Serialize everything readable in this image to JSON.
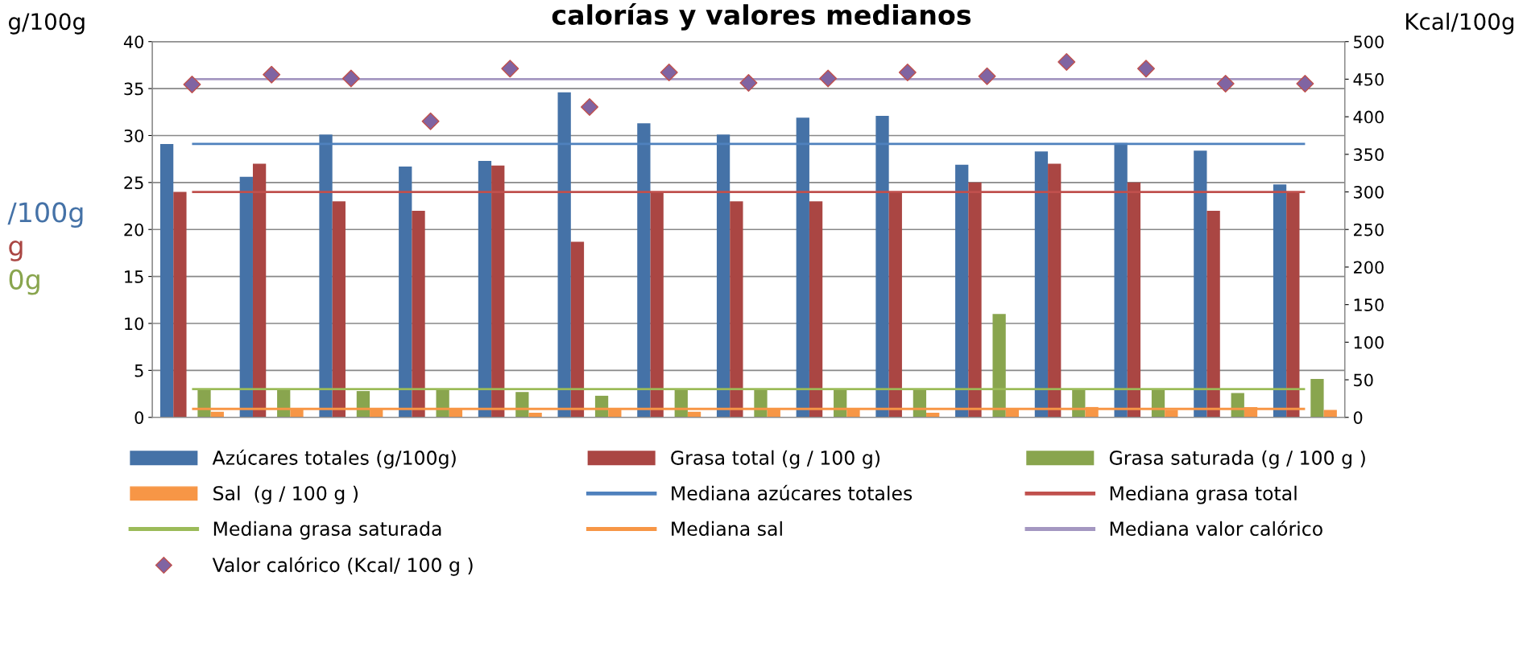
{
  "chart_data": {
    "type": "bar",
    "title": "calorías y valores medianos",
    "ylabel": "g/100g",
    "y2label": "Kcal/100g",
    "annotations": [
      "/100g",
      "g",
      "0g"
    ],
    "categories": [
      null,
      null,
      null,
      null,
      null,
      null,
      null,
      null,
      null,
      null,
      null,
      null,
      null,
      null,
      null
    ],
    "series": [
      {
        "name": "Azúcares totales (g/100g)",
        "color": "#4572a7",
        "values": [
          29.1,
          25.6,
          30.1,
          26.7,
          27.3,
          34.6,
          31.3,
          30.1,
          31.9,
          32.1,
          26.9,
          28.3,
          29.2,
          28.4,
          24.8
        ]
      },
      {
        "name": "Grasa total (g / 100 g)",
        "color": "#aa4643",
        "values": [
          24,
          27,
          23,
          22,
          26.8,
          18.7,
          24,
          23,
          23,
          24,
          25,
          27,
          25,
          22,
          24
        ]
      },
      {
        "name": "Grasa saturada (g / 100 g )",
        "color": "#89a54e",
        "values": [
          3,
          3,
          2.8,
          3,
          2.7,
          2.3,
          3,
          3,
          3,
          3,
          11,
          3,
          3,
          2.6,
          4.1
        ]
      },
      {
        "name": "Sal  (g / 100 g )",
        "color": "#f79646",
        "values": [
          0.6,
          0.9,
          1.0,
          0.9,
          0.5,
          0.9,
          0.6,
          0.9,
          0.9,
          0.5,
          0.9,
          1.1,
          0.8,
          1.1,
          0.8
        ]
      },
      {
        "name": "Mediana azúcares totales",
        "type": "line",
        "color": "#4f81bd",
        "values": [
          29.1,
          29.1,
          29.1,
          29.1,
          29.1,
          29.1,
          29.1,
          29.1,
          29.1,
          29.1,
          29.1,
          29.1,
          29.1,
          29.1,
          29.1
        ]
      },
      {
        "name": "Mediana grasa total",
        "type": "line",
        "color": "#c0504d",
        "values": [
          24,
          24,
          24,
          24,
          24,
          24,
          24,
          24,
          24,
          24,
          24,
          24,
          24,
          24,
          24
        ]
      },
      {
        "name": "Mediana grasa saturada",
        "type": "line",
        "color": "#9bbb59",
        "values": [
          3,
          3,
          3,
          3,
          3,
          3,
          3,
          3,
          3,
          3,
          3,
          3,
          3,
          3,
          3
        ]
      },
      {
        "name": "Mediana sal",
        "type": "line",
        "color": "#f79646",
        "values": [
          0.9,
          0.9,
          0.9,
          0.9,
          0.9,
          0.9,
          0.9,
          0.9,
          0.9,
          0.9,
          0.9,
          0.9,
          0.9,
          0.9,
          0.9
        ]
      },
      {
        "name": "Mediana valor calórico",
        "type": "line",
        "axis": "y2",
        "color": "#a497c1",
        "values": [
          450,
          450,
          450,
          450,
          450,
          450,
          450,
          450,
          450,
          450,
          450,
          450,
          450,
          450,
          450
        ]
      },
      {
        "name": "Valor calórico (Kcal/ 100 g )",
        "type": "scatter",
        "axis": "y2",
        "color": "#8064a2",
        "marker": "diamond",
        "values": [
          443,
          456,
          451,
          394,
          464,
          413,
          459,
          445,
          451,
          459,
          454,
          473,
          464,
          444,
          444
        ]
      }
    ],
    "ylim": [
      0,
      40
    ],
    "yticks": [
      0,
      5,
      10,
      15,
      20,
      25,
      30,
      35,
      40
    ],
    "y2lim": [
      0,
      500
    ],
    "y2ticks": [
      0,
      50,
      100,
      150,
      200,
      250,
      300,
      350,
      400,
      450,
      500
    ],
    "grid": "y",
    "legend": "bottom"
  }
}
